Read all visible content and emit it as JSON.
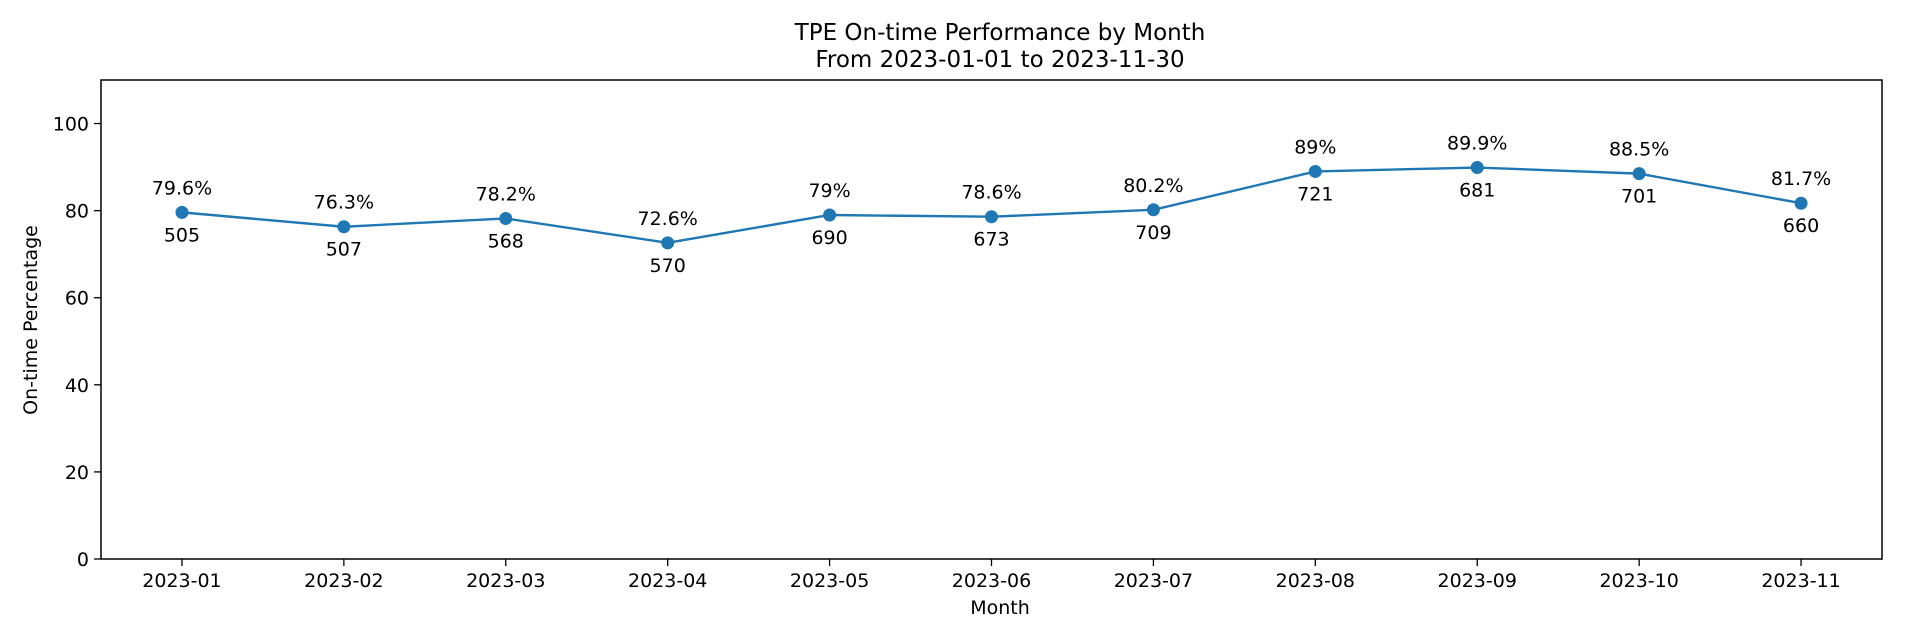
{
  "chart_data": {
    "type": "line",
    "title": "TPE On-time Performance by Month",
    "subtitle": "From 2023-01-01 to 2023-11-30",
    "xlabel": "Month",
    "ylabel": "On-time Percentage",
    "ylim": [
      0,
      110
    ],
    "yticks": [
      "0",
      "20",
      "40",
      "60",
      "80",
      "100"
    ],
    "categories": [
      "2023-01",
      "2023-02",
      "2023-03",
      "2023-04",
      "2023-05",
      "2023-06",
      "2023-07",
      "2023-08",
      "2023-09",
      "2023-10",
      "2023-11"
    ],
    "values": [
      79.6,
      76.3,
      78.2,
      72.6,
      79.0,
      78.6,
      80.2,
      89.0,
      89.9,
      88.5,
      81.7
    ],
    "percent_labels": [
      "79.6%",
      "76.3%",
      "78.2%",
      "72.6%",
      "79%",
      "78.6%",
      "80.2%",
      "89%",
      "89.9%",
      "88.5%",
      "81.7%"
    ],
    "count_labels": [
      "505",
      "507",
      "568",
      "570",
      "690",
      "673",
      "709",
      "721",
      "681",
      "701",
      "660"
    ],
    "grid": false,
    "legend": "none",
    "line_color": "#1f77b4"
  }
}
